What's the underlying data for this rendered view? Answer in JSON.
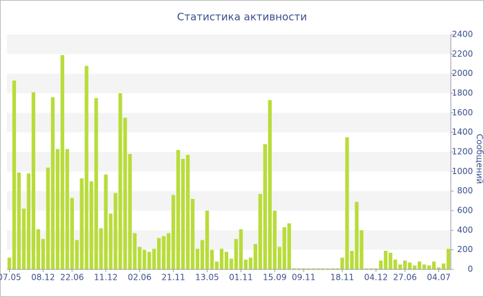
{
  "chart_data": {
    "type": "bar",
    "title": "Статистика активности",
    "y_axis_label": "Сообщений",
    "categories": [
      "07.05",
      null,
      null,
      null,
      null,
      null,
      null,
      "08.12",
      null,
      null,
      null,
      null,
      null,
      "22.06",
      null,
      null,
      null,
      null,
      null,
      null,
      "11.12",
      null,
      null,
      null,
      null,
      null,
      null,
      "02.06",
      null,
      null,
      null,
      null,
      null,
      null,
      "21.11",
      null,
      null,
      null,
      null,
      null,
      null,
      "13.05",
      null,
      null,
      null,
      null,
      null,
      null,
      "01.11",
      null,
      null,
      null,
      null,
      null,
      null,
      "15.09",
      null,
      null,
      null,
      null,
      null,
      "09.11",
      null,
      null,
      null,
      null,
      null,
      null,
      null,
      "18.11",
      null,
      null,
      null,
      null,
      null,
      null,
      "04.12",
      null,
      null,
      null,
      null,
      null,
      "27.06",
      null,
      null,
      null,
      null,
      null,
      null,
      "04.07",
      null,
      null
    ],
    "values": [
      120,
      1930,
      990,
      620,
      980,
      1810,
      410,
      310,
      1040,
      1760,
      1230,
      2190,
      1230,
      730,
      300,
      930,
      2080,
      900,
      1750,
      420,
      970,
      570,
      780,
      1800,
      1550,
      1180,
      370,
      230,
      200,
      180,
      210,
      320,
      340,
      370,
      760,
      1220,
      1130,
      1170,
      720,
      210,
      300,
      600,
      200,
      80,
      210,
      180,
      110,
      310,
      410,
      100,
      120,
      260,
      770,
      1280,
      1730,
      600,
      230,
      430,
      470,
      10,
      10,
      10,
      10,
      10,
      10,
      10,
      10,
      10,
      10,
      120,
      1350,
      190,
      690,
      400,
      10,
      10,
      10,
      90,
      190,
      170,
      100,
      50,
      90,
      70,
      40,
      80,
      50,
      40,
      80,
      20,
      60,
      210
    ],
    "color": "#b8dc3a",
    "ylim": [
      0,
      2400
    ],
    "yticks": [
      0,
      200,
      400,
      600,
      800,
      1000,
      1200,
      1400,
      1600,
      1800,
      2000,
      2200,
      2400
    ],
    "grid": true
  }
}
